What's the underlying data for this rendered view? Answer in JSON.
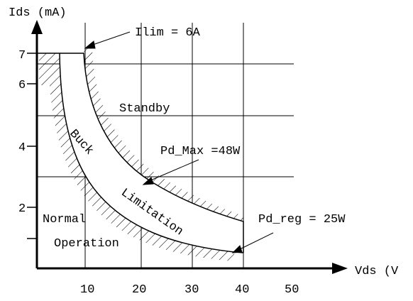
{
  "axes": {
    "y_label": "Ids (mA)",
    "x_label": "Vds (V",
    "y_ticks": [
      "2",
      "4",
      "6",
      "7"
    ],
    "x_ticks": [
      "10",
      "20",
      "30",
      "40",
      "50"
    ]
  },
  "annotations": {
    "ilim": "Ilim = 6A",
    "standby": "Standby",
    "pd_max": "Pd_Max =48W",
    "pd_reg": "Pd_reg = 25W",
    "normal": "Normal",
    "operation": "Operation",
    "buck": "Buck",
    "limitation": "Limitation"
  }
}
